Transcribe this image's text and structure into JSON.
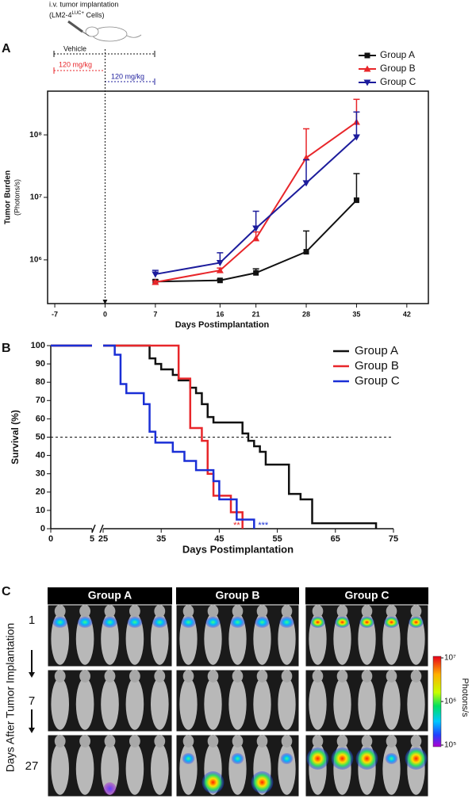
{
  "panels": [
    "A",
    "B",
    "C"
  ],
  "schematic": {
    "title": "i.v. tumor implantation",
    "cells": "(LM2-4",
    "cells_sup": "LUC+",
    "cells_end": " Cells)",
    "vehicle": "Vehicle",
    "dose_b": "120 mg/kg",
    "dose_c": "120 mg/kg"
  },
  "chart_data": [
    {
      "type": "line",
      "y_label": [
        "Tumor Burden",
        "(Photons/s)"
      ],
      "x_label": "Days Postimplantation",
      "x": [
        7,
        16,
        21,
        28,
        35
      ],
      "xlim": [
        -8,
        45
      ],
      "xticks": [
        -7,
        0,
        7,
        16,
        21,
        28,
        35,
        42
      ],
      "ylim": [
        200000,
        500000000
      ],
      "yscale": "log",
      "yticks": [
        {
          "value": 1000000,
          "label": "10⁶"
        },
        {
          "value": 10000000,
          "label": "10⁷"
        },
        {
          "value": 100000000,
          "label": "10⁸"
        }
      ],
      "vline": 0,
      "legend": "upper right",
      "series": [
        {
          "name": "Group A",
          "color": "#111111",
          "marker": "square",
          "values": [
            450000,
            470000,
            620000,
            1350000,
            9000000
          ],
          "errors": [
            30000,
            20000,
            100000,
            1550000,
            15000000
          ]
        },
        {
          "name": "Group B",
          "color": "#e8262a",
          "marker": "triangle-up",
          "values": [
            440000,
            680000,
            2200000,
            43000000,
            160000000
          ],
          "errors": [
            20000,
            60000,
            600000,
            82000000,
            210000000
          ]
        },
        {
          "name": "Group C",
          "color": "#1c1c9c",
          "marker": "triangle-down",
          "values": [
            590000,
            900000,
            3200000,
            17000000,
            92000000
          ],
          "errors": [
            90000,
            400000,
            2800000,
            23000000,
            140000000
          ]
        }
      ]
    },
    {
      "type": "step",
      "y_label": "Survival (%)",
      "x_label": "Days Postimplantation",
      "xlim": [
        0,
        75
      ],
      "xbreak": [
        5,
        25
      ],
      "xticks": [
        0,
        5,
        25,
        35,
        45,
        55,
        65,
        75
      ],
      "ylim": [
        0,
        100
      ],
      "yticks": [
        0,
        10,
        20,
        30,
        40,
        50,
        60,
        70,
        80,
        90,
        100
      ],
      "hline": 50,
      "legend": "upper right",
      "series": [
        {
          "name": "Group A",
          "color": "#111111",
          "x": [
            0,
            33,
            34,
            35,
            37,
            38,
            40,
            41,
            42,
            43,
            44,
            49,
            50,
            51,
            52,
            53,
            57,
            59,
            61,
            72
          ],
          "values": [
            100,
            93,
            90,
            87,
            84,
            81,
            77,
            74,
            68,
            61,
            58,
            52,
            48,
            45,
            42,
            35,
            19,
            16,
            3,
            0
          ]
        },
        {
          "name": "Group B",
          "color": "#e8262a",
          "x": [
            0,
            38,
            40,
            42,
            43,
            44,
            47,
            49
          ],
          "values": [
            100,
            82,
            55,
            48,
            30,
            18,
            9,
            0
          ],
          "significance": "**"
        },
        {
          "name": "Group C",
          "color": "#1a2fd6",
          "x": [
            0,
            27,
            28,
            29,
            32,
            33,
            34,
            37,
            39,
            41,
            44,
            45,
            48,
            51
          ],
          "values": [
            100,
            95,
            79,
            74,
            68,
            53,
            47,
            42,
            37,
            32,
            26,
            16,
            5,
            0
          ],
          "significance": "***"
        }
      ]
    }
  ],
  "imaging": {
    "groups": [
      "Group A",
      "Group B",
      "Group C"
    ],
    "days": [
      "1",
      "7",
      "27"
    ],
    "y_label": "Days After Tumor Implantation",
    "colorbar": {
      "label": "Photons/s",
      "ticks": [
        "10⁷",
        "10⁶",
        "10⁵"
      ]
    }
  }
}
